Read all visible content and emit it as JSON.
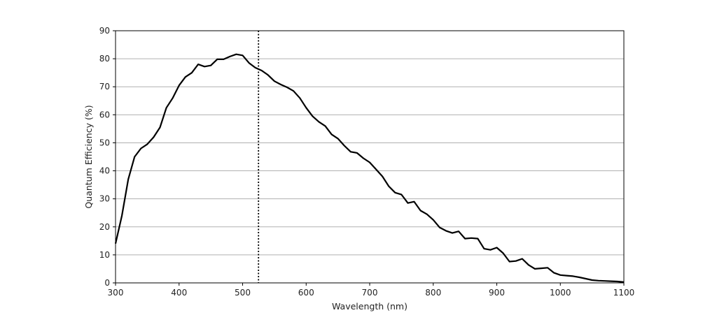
{
  "chart_data": {
    "type": "line",
    "title": "",
    "xlabel": "Wavelength (nm)",
    "ylabel": "Quantum Efficiency (%)",
    "xlim": [
      300,
      1100
    ],
    "ylim": [
      0,
      90
    ],
    "x_ticks": [
      300,
      400,
      500,
      600,
      700,
      800,
      900,
      1000,
      1100
    ],
    "y_ticks": [
      0,
      10,
      20,
      30,
      40,
      50,
      60,
      70,
      80,
      90
    ],
    "grid": "horizontal",
    "legend": "none",
    "series": [
      {
        "color": "#000000",
        "x": [
          300,
          310,
          320,
          330,
          340,
          350,
          360,
          370,
          380,
          390,
          400,
          410,
          420,
          430,
          440,
          450,
          460,
          470,
          480,
          490,
          500,
          510,
          520,
          530,
          540,
          550,
          560,
          570,
          580,
          590,
          600,
          610,
          620,
          630,
          640,
          650,
          660,
          670,
          680,
          690,
          700,
          710,
          720,
          730,
          740,
          750,
          760,
          770,
          780,
          790,
          800,
          810,
          820,
          830,
          840,
          850,
          860,
          870,
          880,
          890,
          900,
          910,
          920,
          930,
          940,
          950,
          960,
          970,
          980,
          990,
          1000,
          1010,
          1020,
          1030,
          1040,
          1050,
          1060,
          1070,
          1080,
          1090,
          1100
        ],
        "y": [
          14,
          24,
          37,
          45,
          48,
          49.5,
          52,
          55.5,
          62.5,
          66,
          70.5,
          73.5,
          75,
          78,
          77.2,
          77.6,
          79.8,
          79.8,
          80.8,
          81.6,
          81.2,
          78.5,
          76.8,
          75.8,
          74.2,
          72,
          70.8,
          69.8,
          68.5,
          66,
          62.5,
          59.5,
          57.5,
          56,
          53,
          51.5,
          49,
          46.8,
          46.4,
          44.5,
          43,
          40.5,
          38,
          34.5,
          32.2,
          31.5,
          28.5,
          29,
          25.8,
          24.5,
          22.5,
          19.8,
          18.6,
          17.8,
          18.4,
          15.8,
          16,
          15.8,
          12.2,
          11.8,
          12.6,
          10.6,
          7.6,
          7.8,
          8.6,
          6.4,
          5,
          5.2,
          5.4,
          3.6,
          2.8,
          2.6,
          2.4,
          2,
          1.5,
          1,
          0.8,
          0.7,
          0.6,
          0.5,
          0.3
        ]
      }
    ],
    "vertical_line": {
      "x": 525,
      "style": "dotted",
      "color": "#000000"
    }
  }
}
